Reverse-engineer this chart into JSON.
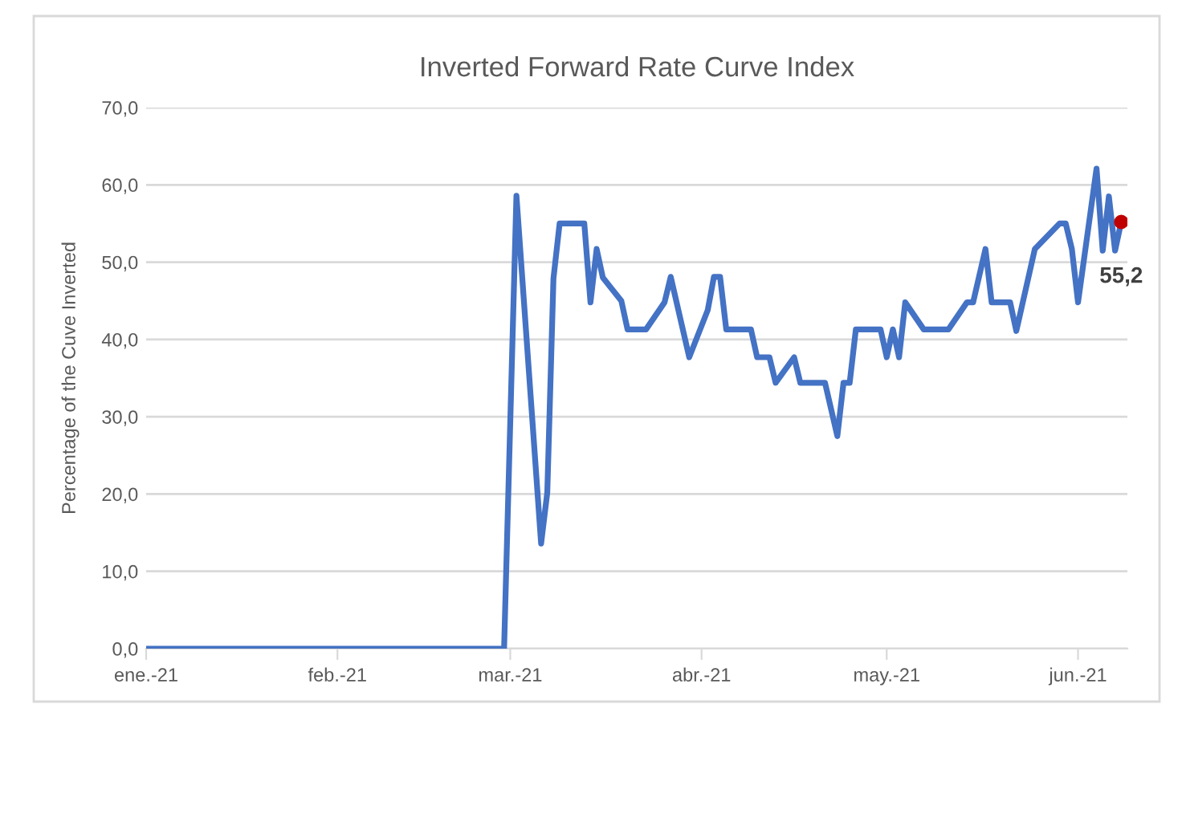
{
  "chart_data": {
    "type": "line",
    "title": "Inverted Forward Rate Curve Index",
    "ylabel": "Percentage of the Cuve Inverted",
    "x": [
      "2021-01-01",
      "2021-02-28",
      "2021-03-02",
      "2021-03-06",
      "2021-03-07",
      "2021-03-08",
      "2021-03-09",
      "2021-03-13",
      "2021-03-14",
      "2021-03-15",
      "2021-03-16",
      "2021-03-19",
      "2021-03-20",
      "2021-03-23",
      "2021-03-26",
      "2021-03-27",
      "2021-03-30",
      "2021-04-02",
      "2021-04-03",
      "2021-04-04",
      "2021-04-05",
      "2021-04-09",
      "2021-04-10",
      "2021-04-12",
      "2021-04-13",
      "2021-04-16",
      "2021-04-17",
      "2021-04-21",
      "2021-04-23",
      "2021-04-24",
      "2021-04-25",
      "2021-04-26",
      "2021-04-30",
      "2021-05-01",
      "2021-05-02",
      "2021-05-03",
      "2021-05-04",
      "2021-05-07",
      "2021-05-11",
      "2021-05-14",
      "2021-05-15",
      "2021-05-17",
      "2021-05-18",
      "2021-05-21",
      "2021-05-22",
      "2021-05-25",
      "2021-05-29",
      "2021-05-30",
      "2021-05-31",
      "2021-06-01",
      "2021-06-04",
      "2021-06-05",
      "2021-06-06",
      "2021-06-07",
      "2021-06-08"
    ],
    "series": [
      {
        "color": "#4472c4",
        "marker": "none",
        "line_style": "solid",
        "values": [
          0,
          0,
          58.6,
          13.6,
          20.2,
          47.9,
          55.0,
          55.0,
          44.8,
          51.7,
          48.0,
          45.0,
          41.3,
          41.3,
          44.8,
          48.1,
          37.7,
          43.8,
          48.1,
          48.1,
          41.3,
          41.3,
          37.7,
          37.7,
          34.4,
          37.7,
          34.4,
          34.4,
          27.5,
          34.4,
          34.4,
          41.3,
          41.3,
          37.7,
          41.3,
          37.7,
          44.8,
          41.3,
          41.3,
          44.8,
          44.8,
          51.7,
          44.8,
          44.8,
          41.1,
          51.7,
          55.0,
          55.0,
          51.7,
          44.8,
          62.1,
          51.5,
          58.5,
          51.5,
          55.2
        ]
      },
      {
        "type": "scatter",
        "color": "#c00000",
        "marker": "circle",
        "x": [
          "2021-06-08"
        ],
        "values": [
          55.2
        ],
        "value_labels": [
          "55,2"
        ]
      }
    ],
    "xlim": [
      "2021-01-01",
      "2021-06-09"
    ],
    "xticks": [
      {
        "value": "2021-01-01",
        "label": "ene.-21"
      },
      {
        "value": "2021-02-01",
        "label": "feb.-21"
      },
      {
        "value": "2021-03-01",
        "label": "mar.-21"
      },
      {
        "value": "2021-04-01",
        "label": "abr.-21"
      },
      {
        "value": "2021-05-01",
        "label": "may.-21"
      },
      {
        "value": "2021-06-01",
        "label": "jun.-21"
      }
    ],
    "ylim": [
      0,
      70
    ],
    "yticks": [
      {
        "value": 0,
        "label": "0,0"
      },
      {
        "value": 10,
        "label": "10,0"
      },
      {
        "value": 20,
        "label": "20,0"
      },
      {
        "value": 30,
        "label": "30,0"
      },
      {
        "value": 40,
        "label": "40,0"
      },
      {
        "value": 50,
        "label": "50,0"
      },
      {
        "value": 60,
        "label": "60,0"
      },
      {
        "value": 70,
        "label": "70,0"
      }
    ],
    "grid": "y",
    "legend": false
  }
}
